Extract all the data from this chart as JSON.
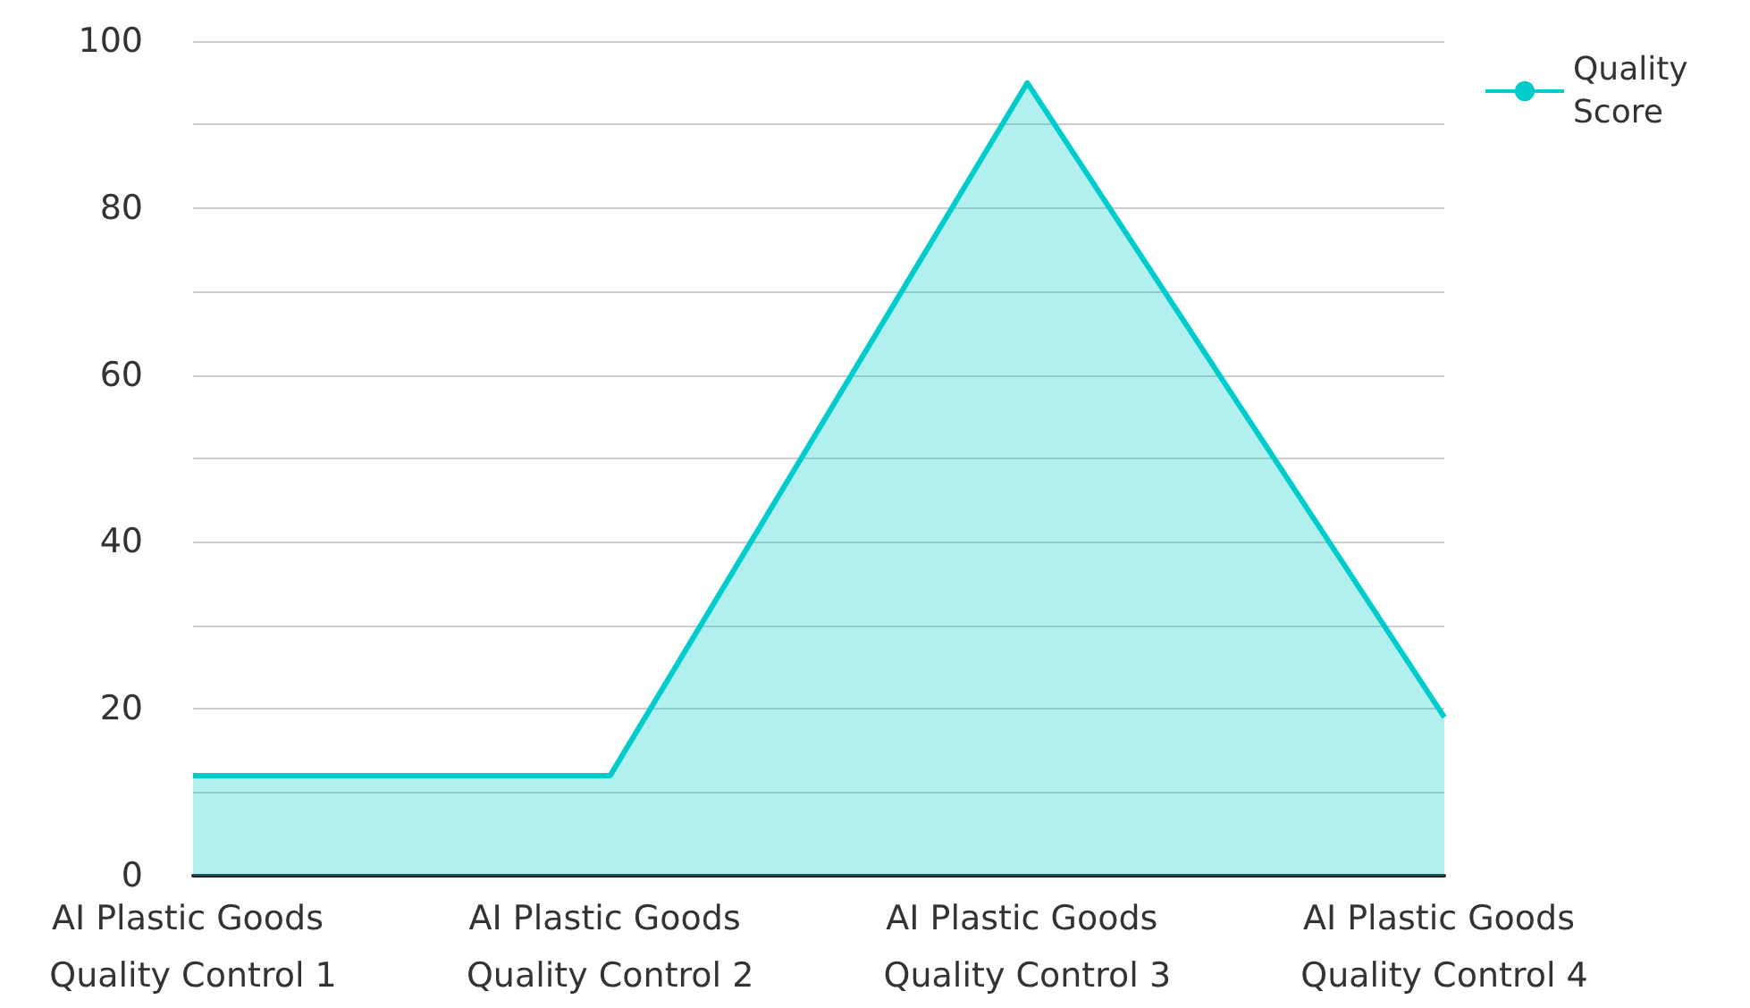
{
  "chart_data": {
    "type": "area",
    "categories": [
      "AI Plastic Goods Quality Control 1",
      "AI Plastic Goods Quality Control 2",
      "AI Plastic Goods Quality Control 3",
      "AI Plastic Goods Quality Control 4"
    ],
    "series": [
      {
        "name": "Quality Score",
        "color": "#00cccc",
        "values": [
          12,
          12,
          95,
          19
        ]
      }
    ],
    "ylim": [
      0,
      100
    ],
    "yticks": [
      0,
      {
        "value": 10,
        "label": null
      },
      20,
      {
        "value": 30,
        "label": null
      },
      40,
      {
        "value": 50,
        "label": null
      },
      60,
      {
        "value": 70,
        "label": null
      },
      80,
      {
        "value": 90,
        "label": null
      },
      100
    ],
    "grid": "y",
    "legend": "top right",
    "marker": "none"
  }
}
